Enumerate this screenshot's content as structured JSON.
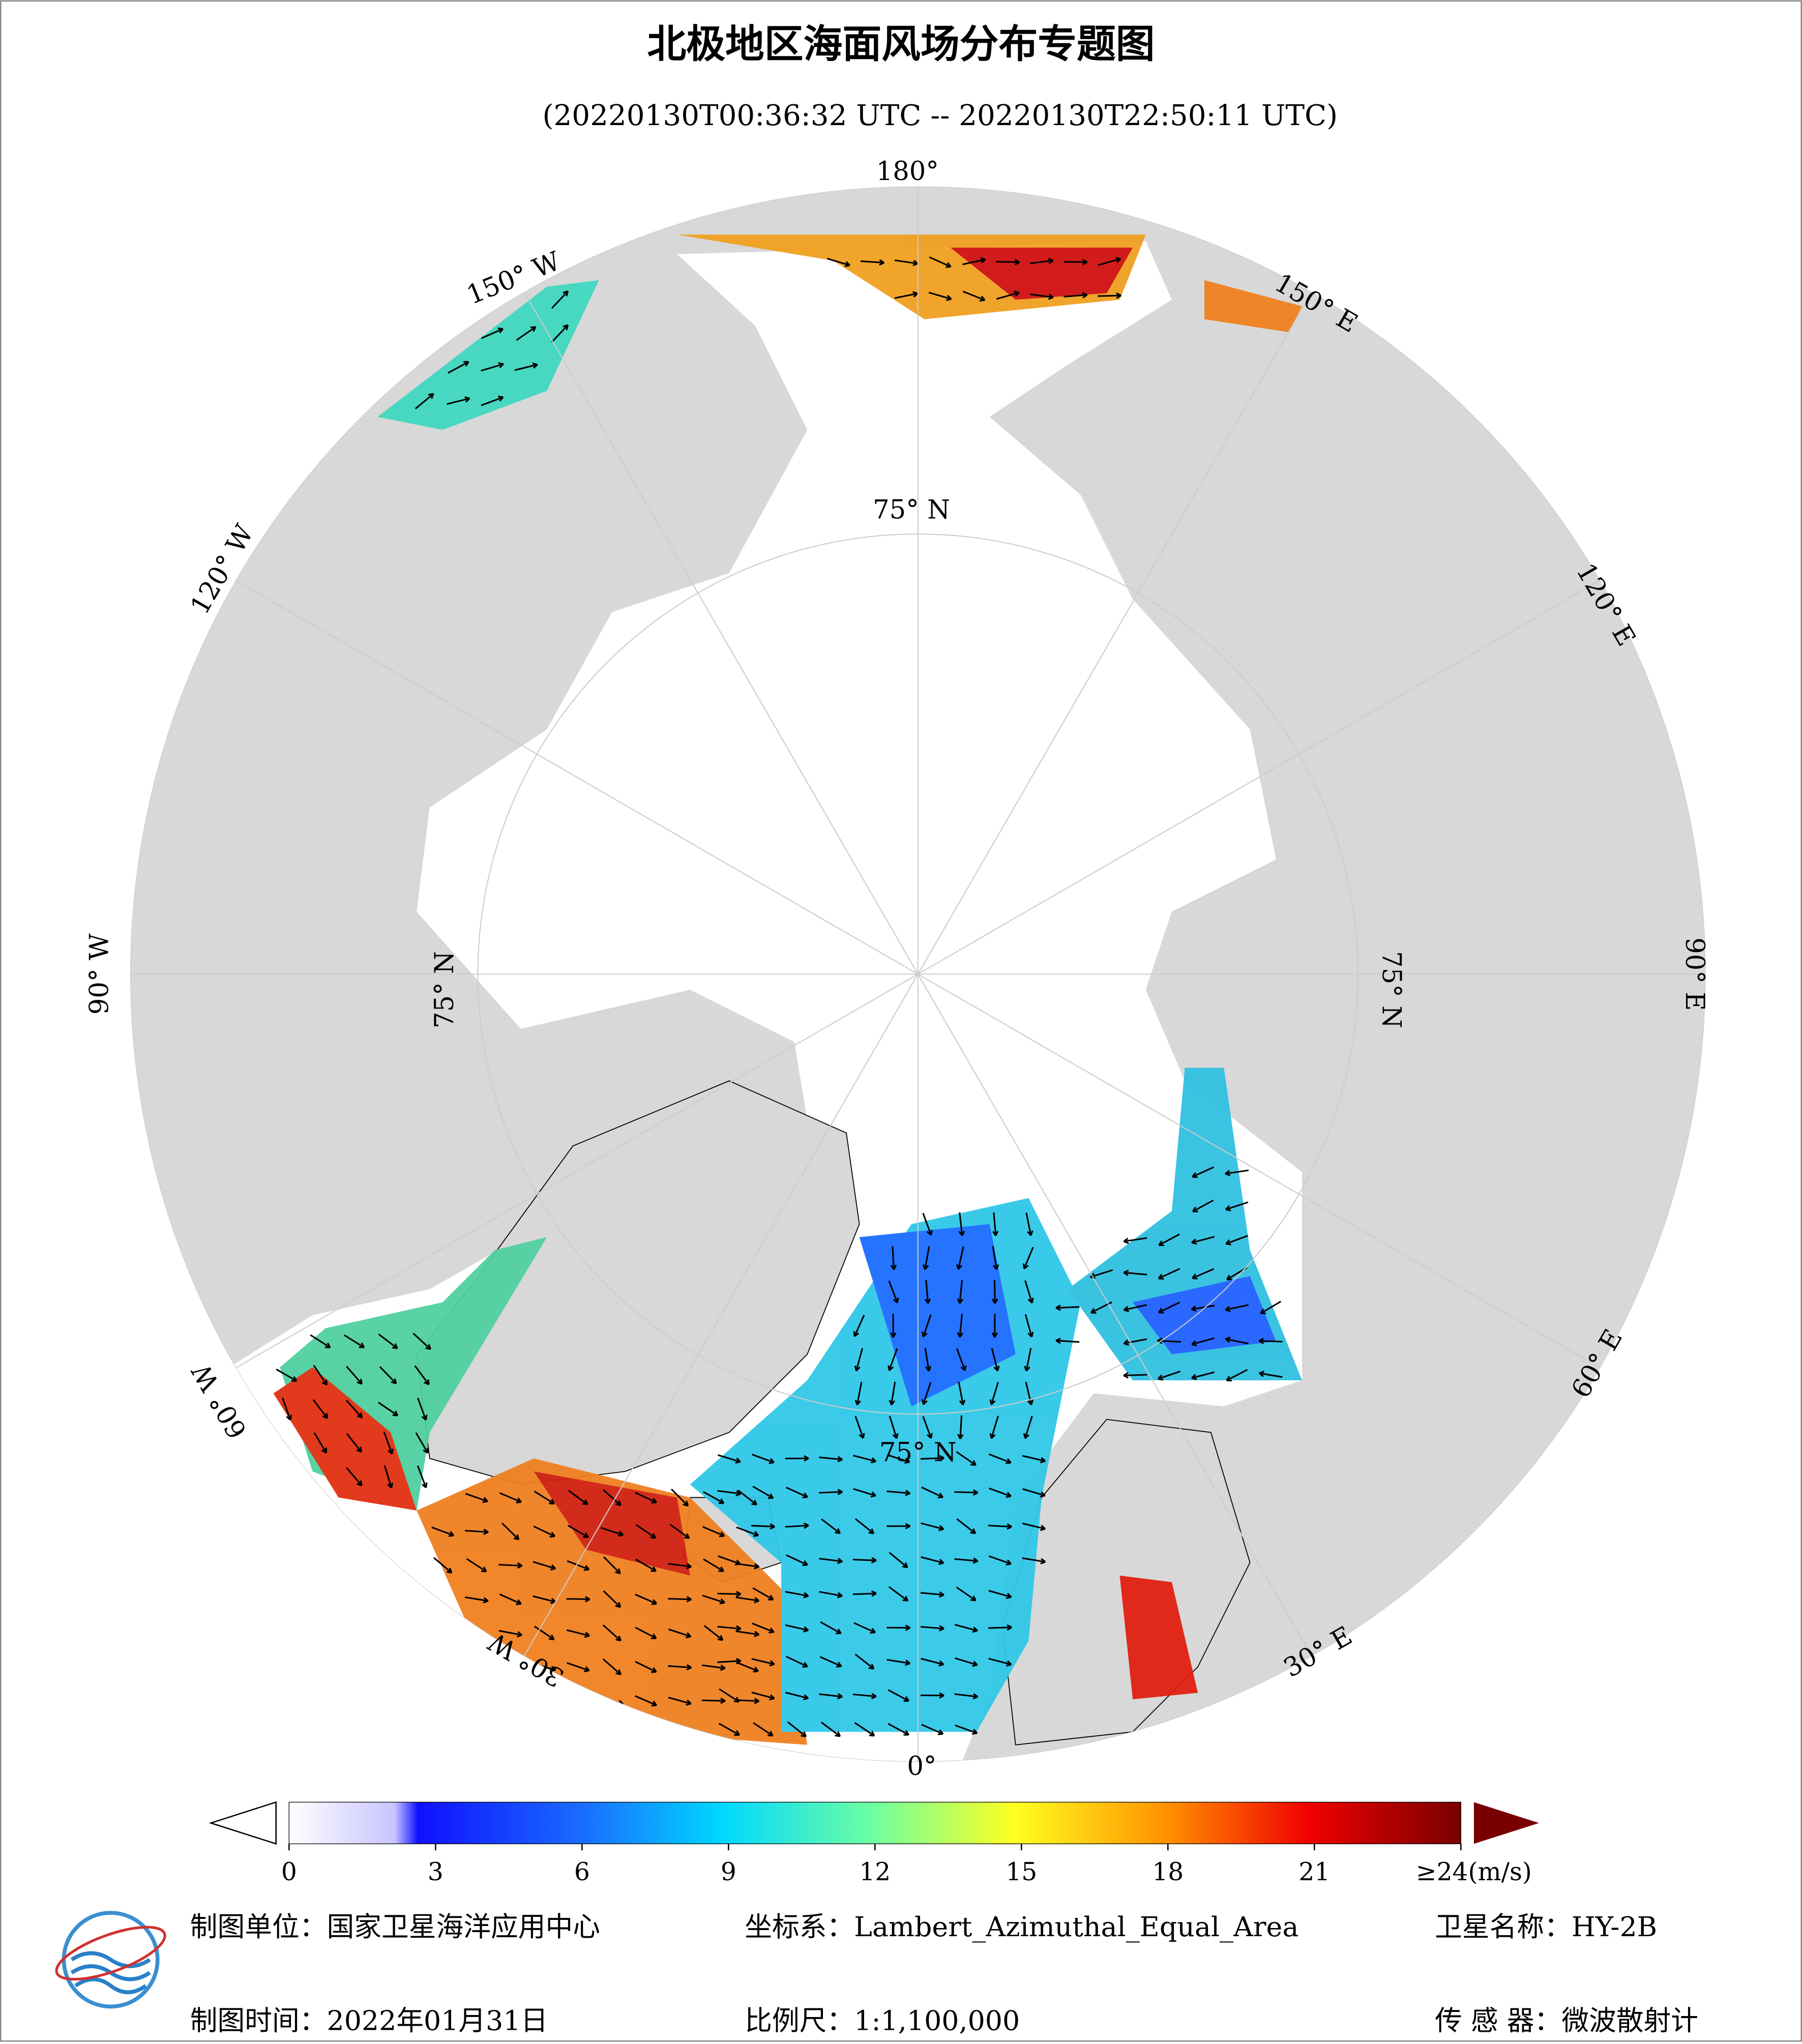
{
  "header": {
    "title": "北极地区海面风场分布专题图",
    "subtitle": "(20220130T00:36:32 UTC -- 20220130T22:50:11 UTC)"
  },
  "map": {
    "longitude_labels": [
      "180°",
      "150° E",
      "120° E",
      "90° E",
      "60° E",
      "30° E",
      "0°",
      "30° W",
      "60° W",
      "90° W",
      "120° W",
      "150° W"
    ],
    "latitude_labels": [
      "75° N",
      "75° N",
      "75° N",
      "75° N"
    ]
  },
  "colorbar": {
    "range": [
      0,
      24
    ],
    "ticks": [
      0,
      3,
      6,
      9,
      12,
      15,
      18,
      21,
      {
        "value": 24,
        "label": "≥24(m/s)"
      }
    ]
  },
  "footer": {
    "unit": "制图单位：国家卫星海洋应用中心",
    "crs": "坐标系：Lambert_Azimuthal_Equal_Area",
    "satellite": "卫星名称：HY-2B",
    "date": "制图时间：2022年01月31日",
    "scale": "比例尺：1:1,100,000",
    "sensor": "传 感 器：微波散射计"
  }
}
